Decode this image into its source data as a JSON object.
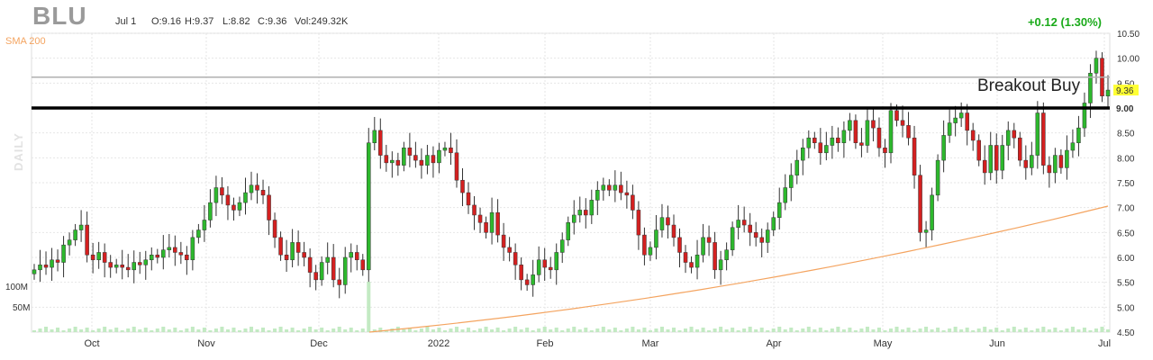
{
  "header": {
    "ticker": "BLU",
    "date": "Jul 1",
    "open": "O:9.16",
    "high": "H:9.37",
    "low": "L:8.82",
    "close": "C:9.36",
    "volume": "Vol:249.32K",
    "change": "+0.12 (1.30%)",
    "change_color": "#1aaa1a"
  },
  "indicators": {
    "sma_label": "SMA 200",
    "sma_color": "#f4a460",
    "timeframe_label": "DAILY"
  },
  "volume_axis": {
    "label_100m": "100M",
    "label_50m": "50M"
  },
  "annotation": {
    "text": "Breakout Buy"
  },
  "chart_data": {
    "type": "candlestick",
    "yticks": [
      "10.50",
      "10.00",
      "9.50",
      "9.00",
      "8.50",
      "8.00",
      "7.50",
      "7.00",
      "6.50",
      "6.00",
      "5.50",
      "5.00",
      "4.50"
    ],
    "ylim": [
      4.5,
      10.5
    ],
    "x_labels": [
      "Oct",
      "Nov",
      "Dec",
      "2022",
      "Feb",
      "Mar",
      "Apr",
      "May",
      "Jun",
      "Jul"
    ],
    "last_price": "9.36",
    "last_price_value": 9.36,
    "breakout_level": "9.00",
    "breakout_value": 9.0,
    "resistance_grey": 9.62,
    "sma200_start": 4.5,
    "sma200_end": 7.03,
    "up_color": "#2db82d",
    "down_color": "#d42020",
    "closes": [
      5.75,
      5.85,
      5.8,
      5.95,
      5.9,
      6.25,
      6.35,
      6.55,
      6.65,
      6.05,
      5.95,
      6.1,
      5.9,
      5.8,
      5.85,
      5.8,
      5.75,
      5.9,
      5.85,
      5.95,
      6.05,
      6.0,
      6.15,
      6.2,
      6.1,
      6.05,
      5.95,
      6.4,
      6.55,
      6.75,
      7.1,
      7.4,
      7.25,
      7.05,
      6.95,
      7.1,
      7.3,
      7.45,
      7.35,
      7.25,
      6.75,
      6.4,
      6.05,
      5.95,
      6.3,
      6.1,
      6.0,
      5.7,
      5.55,
      5.9,
      6.0,
      5.55,
      5.45,
      6.0,
      6.1,
      5.95,
      5.75,
      8.3,
      8.55,
      8.05,
      7.9,
      7.95,
      7.85,
      8.2,
      8.05,
      7.95,
      7.85,
      8.05,
      7.9,
      8.15,
      8.2,
      8.1,
      7.55,
      7.3,
      7.05,
      6.85,
      6.7,
      6.5,
      6.9,
      6.45,
      6.2,
      6.1,
      5.85,
      5.55,
      5.45,
      5.65,
      5.95,
      5.8,
      5.75,
      6.1,
      6.35,
      6.7,
      6.85,
      6.95,
      6.85,
      7.15,
      7.35,
      7.45,
      7.35,
      7.45,
      7.3,
      7.25,
      6.95,
      6.45,
      6.05,
      6.2,
      6.55,
      6.8,
      6.65,
      6.4,
      6.1,
      5.9,
      5.8,
      6.05,
      6.4,
      6.3,
      5.75,
      5.95,
      6.15,
      6.6,
      6.75,
      6.65,
      6.5,
      6.4,
      6.3,
      6.55,
      6.8,
      7.1,
      7.4,
      7.65,
      7.95,
      8.2,
      8.4,
      8.3,
      8.1,
      8.25,
      8.4,
      8.3,
      8.55,
      8.75,
      8.3,
      8.25,
      8.75,
      8.6,
      8.2,
      8.1,
      8.95,
      8.75,
      8.65,
      8.4,
      7.65,
      6.5,
      6.55,
      7.25,
      7.95,
      8.45,
      8.7,
      8.8,
      8.9,
      8.55,
      8.35,
      7.95,
      7.7,
      8.25,
      7.75,
      8.25,
      8.55,
      8.4,
      7.95,
      7.8,
      8.05,
      8.9,
      7.85,
      7.7,
      8.05,
      7.8,
      8.15,
      8.3,
      8.6,
      9.1,
      9.7,
      10.0,
      9.24,
      9.36
    ],
    "volume_spike_index": 57
  }
}
